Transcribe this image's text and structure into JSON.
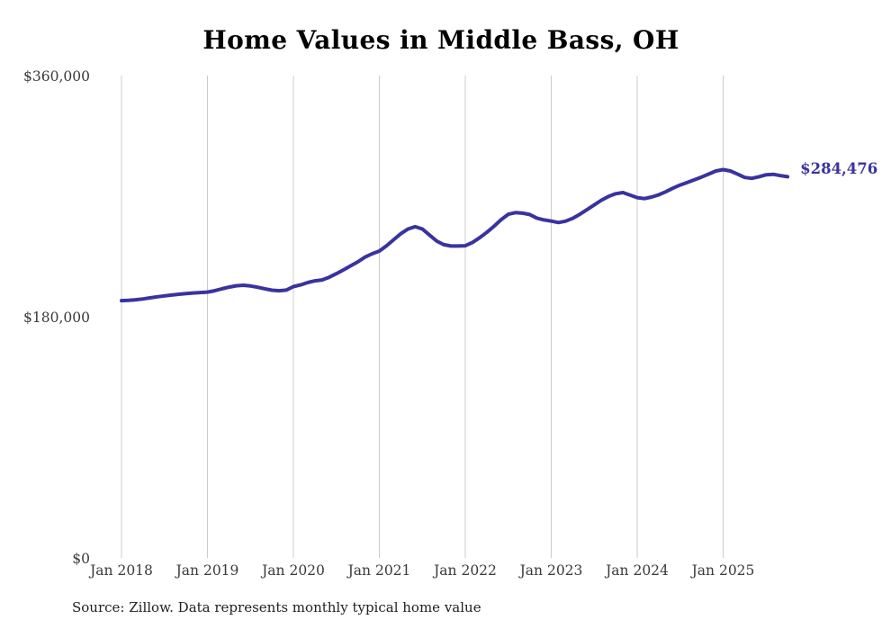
{
  "chart": {
    "title": "Home Values in Middle Bass, OH",
    "source": "Source: Zillow. Data represents monthly typical home value",
    "end_label": "$284,476"
  },
  "colors": {
    "line": "#39339f",
    "grid": "#cccccc",
    "title_text": "#000000",
    "axis_text": "#3a3a3a",
    "source_text": "#222222",
    "background": "#ffffff"
  },
  "chart_data": {
    "type": "line",
    "title": "Home Values in Middle Bass, OH",
    "xlabel": "",
    "ylabel": "",
    "x_frequency": "monthly",
    "x_start": "2018-01",
    "x_end": "2025-10",
    "x_tick_labels": [
      "Jan 2018",
      "Jan 2019",
      "Jan 2020",
      "Jan 2021",
      "Jan 2022",
      "Jan 2023",
      "Jan 2024",
      "Jan 2025"
    ],
    "y_ticks": [
      {
        "label": "$0",
        "value": 0
      },
      {
        "label": "$180,000",
        "value": 180000
      },
      {
        "label": "$360,000",
        "value": 360000
      }
    ],
    "ylim": [
      0,
      360000
    ],
    "grid": "vertical-only",
    "legend": "none",
    "end_value": 284476,
    "series": [
      {
        "name": "Typical home value",
        "values": [
          192000,
          192300,
          192700,
          193300,
          194100,
          194900,
          195600,
          196200,
          196800,
          197300,
          197700,
          198100,
          198400,
          199400,
          200800,
          202100,
          203100,
          203500,
          203000,
          202000,
          200900,
          199800,
          199400,
          199900,
          202500,
          203800,
          205500,
          206800,
          207500,
          209500,
          212200,
          215000,
          218000,
          221000,
          224500,
          227000,
          229000,
          233000,
          237500,
          242000,
          245500,
          247200,
          245500,
          241000,
          236500,
          233800,
          232800,
          232800,
          233000,
          235500,
          239000,
          243000,
          247500,
          252500,
          256500,
          257700,
          257300,
          256300,
          253600,
          252300,
          251400,
          250300,
          251300,
          253500,
          256500,
          260000,
          263500,
          267000,
          269800,
          271800,
          272700,
          270800,
          268900,
          268200,
          269300,
          271000,
          273300,
          276000,
          278300,
          280300,
          282300,
          284300,
          286500,
          288800,
          289800,
          288800,
          286500,
          284000,
          283300,
          284500,
          286000,
          286300,
          285300,
          284476
        ]
      }
    ]
  }
}
